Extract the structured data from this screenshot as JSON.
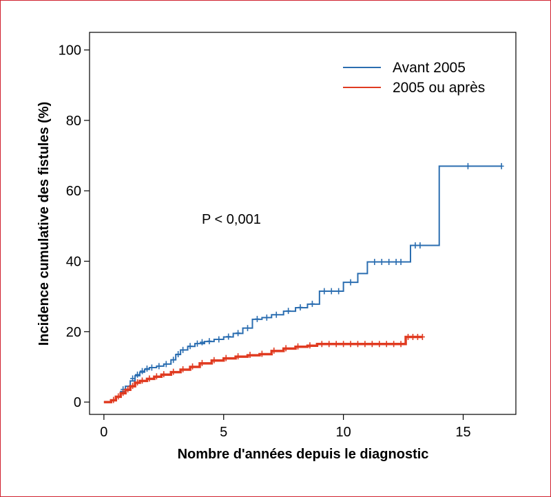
{
  "chart_data": {
    "type": "line",
    "title": "",
    "xlabel": "Nombre d'années depuis le diagnostic",
    "ylabel": "Incidence cumulative des fistules (%)",
    "xlim": [
      -0.6,
      17.2
    ],
    "ylim": [
      -3.5,
      105
    ],
    "xticks": [
      0,
      5,
      10,
      15
    ],
    "yticks": [
      0,
      20,
      40,
      60,
      80,
      100
    ],
    "annotation": "P < 0,001",
    "legend_position": "top-right",
    "grid": false,
    "series": [
      {
        "name": "Avant 2005",
        "color": "#2a6db0",
        "step": true,
        "x": [
          0,
          0.3,
          0.5,
          0.7,
          0.9,
          1.1,
          1.3,
          1.5,
          1.7,
          1.9,
          2.2,
          2.5,
          2.8,
          3.0,
          3.2,
          3.5,
          3.8,
          4.2,
          4.6,
          5.0,
          5.4,
          5.8,
          6.2,
          6.6,
          7.0,
          7.5,
          8.0,
          8.5,
          9.0,
          10.0,
          10.6,
          11.0,
          12.0,
          12.8,
          14.0,
          16.6
        ],
        "y": [
          0,
          0.5,
          1.5,
          3.0,
          4.5,
          6.0,
          7.5,
          8.5,
          9.3,
          9.8,
          10.2,
          10.8,
          12.0,
          13.5,
          14.8,
          15.8,
          16.6,
          17.2,
          17.8,
          18.5,
          19.5,
          21.0,
          23.5,
          24.0,
          24.8,
          25.8,
          26.8,
          27.8,
          31.5,
          34.0,
          36.5,
          39.8,
          39.8,
          44.5,
          67.0,
          67.0
        ],
        "censor_x": [
          0.8,
          1.2,
          1.4,
          1.6,
          1.8,
          2.0,
          2.3,
          2.6,
          2.9,
          3.1,
          3.3,
          3.6,
          3.9,
          4.1,
          4.4,
          4.8,
          5.2,
          5.6,
          6.0,
          6.4,
          6.8,
          7.2,
          7.7,
          8.2,
          8.7,
          9.2,
          9.5,
          9.8,
          10.3,
          11.3,
          11.6,
          11.9,
          12.2,
          12.4,
          13.0,
          13.2,
          15.2,
          16.6
        ],
        "censor_y": [
          3.6,
          6.7,
          7.8,
          8.8,
          9.5,
          9.8,
          10.2,
          10.8,
          12.0,
          13.6,
          14.8,
          15.9,
          16.6,
          17.0,
          17.3,
          17.8,
          18.6,
          19.6,
          21.0,
          23.6,
          24.0,
          24.8,
          25.9,
          26.9,
          27.9,
          31.5,
          31.5,
          31.5,
          34.0,
          39.8,
          39.8,
          39.8,
          39.8,
          39.8,
          44.5,
          44.5,
          67.0,
          67.0
        ]
      },
      {
        "name": "2005 ou après",
        "color": "#e03a20",
        "step": true,
        "x": [
          0,
          0.3,
          0.5,
          0.7,
          0.9,
          1.1,
          1.3,
          1.5,
          1.8,
          2.1,
          2.4,
          2.8,
          3.2,
          3.6,
          4.0,
          4.5,
          5.0,
          5.5,
          6.0,
          6.5,
          7.0,
          7.5,
          8.0,
          8.5,
          8.9,
          12.6,
          13.3
        ],
        "y": [
          0,
          0.5,
          1.5,
          2.5,
          3.5,
          4.5,
          5.5,
          6.0,
          6.6,
          7.2,
          7.8,
          8.5,
          9.2,
          10.0,
          11.0,
          11.8,
          12.4,
          12.9,
          13.3,
          13.6,
          14.5,
          15.2,
          15.7,
          16.0,
          16.5,
          18.5,
          18.5
        ],
        "censor_x": [
          0.4,
          0.6,
          0.8,
          1.0,
          1.2,
          1.4,
          1.6,
          1.9,
          2.2,
          2.5,
          2.9,
          3.3,
          3.7,
          4.1,
          4.6,
          5.1,
          5.6,
          6.1,
          6.6,
          7.1,
          7.6,
          8.1,
          8.6,
          9.1,
          9.4,
          9.7,
          10.0,
          10.3,
          10.6,
          10.9,
          11.2,
          11.5,
          11.8,
          12.1,
          12.4,
          12.7,
          12.9,
          13.1,
          13.3
        ],
        "censor_y": [
          0.6,
          1.6,
          2.6,
          3.6,
          4.6,
          5.6,
          6.1,
          6.7,
          7.3,
          7.9,
          8.6,
          9.3,
          10.1,
          11.1,
          11.9,
          12.5,
          13.0,
          13.4,
          13.7,
          14.6,
          15.3,
          15.8,
          16.1,
          16.5,
          16.5,
          16.5,
          16.5,
          16.5,
          16.5,
          16.5,
          16.5,
          16.5,
          16.5,
          16.5,
          16.5,
          18.5,
          18.5,
          18.5,
          18.5
        ]
      }
    ]
  }
}
